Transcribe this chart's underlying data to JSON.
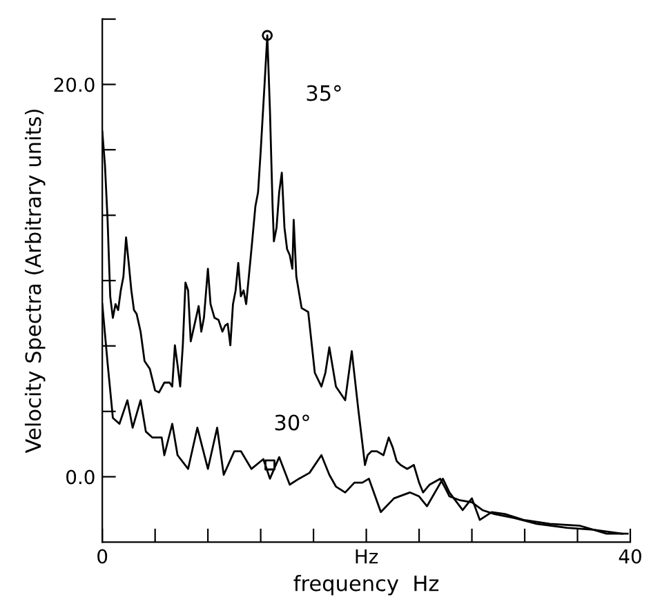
{
  "chart_data": {
    "type": "line",
    "xlabel": "frequency  Hz",
    "ylabel": "Velocity Spectra (Arbitrary units)",
    "xlim": [
      0,
      40
    ],
    "ylim": [
      -3.33,
      23.33
    ],
    "xticks": [
      0,
      {
        "value": 4,
        "label": null
      },
      {
        "value": 8,
        "label": null
      },
      {
        "value": 12,
        "label": null
      },
      {
        "value": 16,
        "label": null
      },
      {
        "value": 20,
        "label": "Hz"
      },
      {
        "value": 24,
        "label": null
      },
      {
        "value": 28,
        "label": null
      },
      {
        "value": 32,
        "label": null
      },
      {
        "value": 36,
        "label": null
      },
      40
    ],
    "yticks": [
      {
        "value": 0,
        "label": "0.0"
      },
      {
        "value": 3.33,
        "label": null
      },
      {
        "value": 6.67,
        "label": null
      },
      {
        "value": 10,
        "label": null
      },
      {
        "value": 13.33,
        "label": null
      },
      {
        "value": 16.67,
        "label": null
      },
      {
        "value": 20,
        "label": "20.0"
      },
      {
        "value": 23.33,
        "label": null
      }
    ],
    "grid": false,
    "legend": false,
    "line_style": "solid",
    "series": [
      {
        "color": "#000000",
        "x": [
          0.0,
          0.2,
          0.4,
          0.6,
          0.8,
          1.0,
          1.2,
          1.4,
          1.6,
          1.8,
          2.0,
          2.2,
          2.4,
          2.6,
          2.9,
          3.2,
          3.6,
          4.0,
          4.3,
          4.7,
          5.1,
          5.3,
          5.5,
          5.7,
          5.9,
          6.1,
          6.3,
          6.5,
          6.7,
          7.0,
          7.3,
          7.5,
          7.7,
          8.0,
          8.2,
          8.5,
          8.8,
          9.1,
          9.3,
          9.5,
          9.7,
          9.9,
          10.1,
          10.3,
          10.5,
          10.7,
          10.9,
          11.3,
          11.6,
          11.8,
          12.0,
          12.3,
          12.5,
          12.7,
          12.9,
          13.0,
          13.2,
          13.4,
          13.6,
          13.8,
          14.0,
          14.2,
          14.4,
          14.5,
          14.7,
          15.1,
          15.6,
          16.1,
          16.6,
          16.9,
          17.2,
          17.7,
          18.4,
          18.9,
          19.4,
          19.9,
          20.1,
          20.4,
          20.8,
          21.3,
          21.7,
          22.0,
          22.3,
          22.6,
          23.1,
          23.6,
          24.0,
          24.3,
          24.8,
          25.6,
          26.0,
          26.3,
          27.1,
          28.0,
          28.8,
          29.7,
          31.2,
          32.9,
          35.2,
          37.2,
          39.4
        ],
        "values": [
          17.6,
          15.9,
          13.1,
          9.2,
          8.1,
          8.8,
          8.5,
          9.5,
          10.2,
          12.2,
          10.9,
          9.5,
          8.5,
          8.3,
          7.4,
          5.9,
          5.5,
          4.4,
          4.3,
          4.8,
          4.8,
          4.6,
          6.7,
          5.7,
          4.6,
          6.7,
          9.9,
          9.5,
          6.9,
          7.8,
          8.7,
          7.4,
          8.1,
          10.6,
          8.8,
          8.1,
          8.0,
          7.4,
          7.7,
          7.8,
          6.7,
          8.8,
          9.5,
          10.9,
          9.2,
          9.5,
          8.8,
          11.6,
          13.8,
          14.5,
          16.6,
          20.1,
          22.5,
          18.7,
          13.8,
          12.0,
          12.7,
          14.5,
          15.5,
          12.7,
          11.6,
          11.3,
          10.6,
          13.1,
          10.2,
          8.6,
          8.4,
          5.3,
          4.6,
          5.3,
          6.6,
          4.6,
          3.9,
          6.4,
          3.4,
          0.6,
          1.1,
          1.3,
          1.3,
          1.1,
          2.0,
          1.5,
          0.8,
          0.6,
          0.4,
          0.6,
          -0.3,
          -0.8,
          -0.4,
          -0.1,
          -0.6,
          -1.0,
          -1.2,
          -1.3,
          -1.7,
          -1.9,
          -2.1,
          -2.4,
          -2.6,
          -2.7,
          -2.9
        ]
      },
      {
        "color": "#000000",
        "x": [
          0.0,
          0.4,
          0.8,
          1.3,
          1.9,
          2.3,
          2.9,
          3.3,
          3.8,
          4.5,
          4.7,
          5.3,
          5.7,
          6.5,
          7.2,
          8.0,
          8.7,
          9.2,
          10.0,
          10.5,
          11.3,
          12.2,
          12.7,
          13.4,
          14.2,
          14.9,
          15.7,
          16.6,
          17.2,
          17.7,
          18.4,
          19.1,
          19.7,
          20.2,
          21.1,
          22.1,
          23.3,
          24.0,
          24.6,
          25.8,
          26.3,
          27.3,
          28.0,
          28.6,
          29.5,
          30.5,
          31.9,
          33.9,
          36.2,
          38.2,
          39.8
        ],
        "values": [
          8.8,
          5.8,
          3.0,
          2.7,
          3.9,
          2.5,
          3.9,
          2.3,
          2.0,
          2.0,
          1.1,
          2.7,
          1.1,
          0.4,
          2.5,
          0.4,
          2.5,
          0.1,
          1.3,
          1.3,
          0.4,
          0.9,
          -0.1,
          1.0,
          -0.4,
          -0.1,
          0.2,
          1.1,
          0.1,
          -0.5,
          -0.8,
          -0.3,
          -0.3,
          -0.1,
          -1.8,
          -1.1,
          -0.8,
          -1.0,
          -1.5,
          -0.1,
          -0.8,
          -1.7,
          -1.1,
          -2.2,
          -1.8,
          -1.9,
          -2.2,
          -2.4,
          -2.5,
          -2.9,
          -2.9
        ]
      },
      {
        "type": "scatter",
        "marker": "circle",
        "color": "#000000",
        "x": [
          12.5
        ],
        "values": [
          22.5
        ]
      },
      {
        "type": "scatter",
        "marker": "square",
        "color": "#000000",
        "x": [
          12.7
        ],
        "values": [
          0.6
        ]
      }
    ],
    "annotations": [
      "35°",
      "30°"
    ]
  }
}
